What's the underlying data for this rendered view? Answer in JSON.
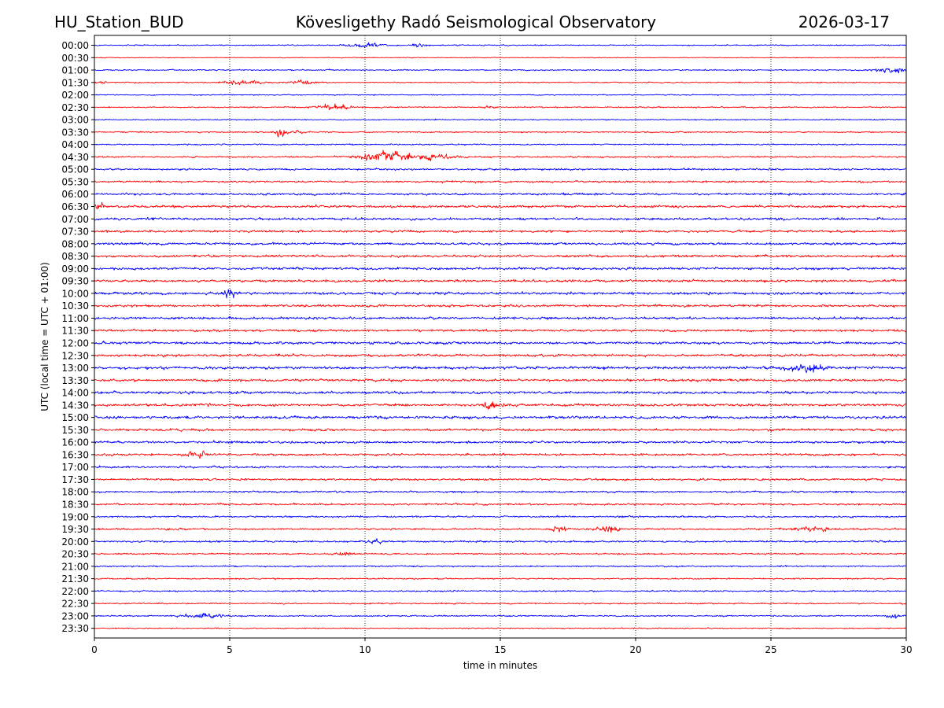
{
  "header": {
    "station": "HU_Station_BUD",
    "observatory": "Kövesligethy Radó Seismological Observatory",
    "date": "2026-03-17"
  },
  "chart_data": {
    "type": "line",
    "title": "Kövesligethy Radó Seismological Observatory",
    "xlabel": "time in minutes",
    "ylabel": "UTC (local time = UTC + 01:00)",
    "xlim": [
      0,
      30
    ],
    "x_ticks": [
      0,
      5,
      10,
      15,
      20,
      25,
      30
    ],
    "x_grid": true,
    "trace_colors": [
      "#0000ff",
      "#ff0000"
    ],
    "row_labels": [
      "00:00",
      "00:30",
      "01:00",
      "01:30",
      "02:00",
      "02:30",
      "03:00",
      "03:30",
      "04:00",
      "04:30",
      "05:00",
      "05:30",
      "06:00",
      "06:30",
      "07:00",
      "07:30",
      "08:00",
      "08:30",
      "09:00",
      "09:30",
      "10:00",
      "10:30",
      "11:00",
      "11:30",
      "12:00",
      "12:30",
      "13:00",
      "13:30",
      "14:00",
      "14:30",
      "15:00",
      "15:30",
      "16:00",
      "16:30",
      "17:00",
      "17:30",
      "18:00",
      "18:30",
      "19:00",
      "19:30",
      "20:00",
      "20:30",
      "21:00",
      "21:30",
      "22:00",
      "22:30",
      "23:00",
      "23:30"
    ],
    "noise_level": [
      0.22,
      0.16,
      0.24,
      0.22,
      0.2,
      0.24,
      0.22,
      0.24,
      0.26,
      0.3,
      0.34,
      0.36,
      0.42,
      0.45,
      0.47,
      0.44,
      0.47,
      0.45,
      0.48,
      0.47,
      0.5,
      0.47,
      0.45,
      0.44,
      0.48,
      0.47,
      0.52,
      0.5,
      0.52,
      0.5,
      0.52,
      0.44,
      0.44,
      0.42,
      0.4,
      0.38,
      0.36,
      0.35,
      0.34,
      0.33,
      0.34,
      0.3,
      0.28,
      0.27,
      0.27,
      0.26,
      0.26,
      0.22
    ],
    "events": [
      {
        "row": 0,
        "minute": 10.0,
        "amplitude": 0.9,
        "duration_min": 1.2
      },
      {
        "row": 0,
        "minute": 12.0,
        "amplitude": 0.6,
        "duration_min": 0.6
      },
      {
        "row": 2,
        "minute": 29.5,
        "amplitude": 1.1,
        "duration_min": 1.2
      },
      {
        "row": 3,
        "minute": 5.5,
        "amplitude": 0.9,
        "duration_min": 1.3
      },
      {
        "row": 3,
        "minute": 7.7,
        "amplitude": 0.8,
        "duration_min": 0.8
      },
      {
        "row": 3,
        "minute": 0.2,
        "amplitude": 0.6,
        "duration_min": 0.5
      },
      {
        "row": 5,
        "minute": 8.8,
        "amplitude": 0.9,
        "duration_min": 1.5
      },
      {
        "row": 5,
        "minute": 14.6,
        "amplitude": 1.0,
        "duration_min": 0.4
      },
      {
        "row": 7,
        "minute": 6.9,
        "amplitude": 1.6,
        "duration_min": 0.5
      },
      {
        "row": 7,
        "minute": 7.5,
        "amplitude": 0.6,
        "duration_min": 1.0
      },
      {
        "row": 9,
        "minute": 10.7,
        "amplitude": 2.2,
        "duration_min": 1.8
      },
      {
        "row": 9,
        "minute": 12.5,
        "amplitude": 0.8,
        "duration_min": 2.0
      },
      {
        "row": 13,
        "minute": 0.2,
        "amplitude": 1.0,
        "duration_min": 0.5
      },
      {
        "row": 20,
        "minute": 5.0,
        "amplitude": 1.4,
        "duration_min": 0.5
      },
      {
        "row": 26,
        "minute": 26.3,
        "amplitude": 1.2,
        "duration_min": 1.6
      },
      {
        "row": 29,
        "minute": 14.7,
        "amplitude": 1.5,
        "duration_min": 0.6
      },
      {
        "row": 33,
        "minute": 3.8,
        "amplitude": 2.2,
        "duration_min": 0.6
      },
      {
        "row": 39,
        "minute": 17.2,
        "amplitude": 1.1,
        "duration_min": 0.5
      },
      {
        "row": 39,
        "minute": 19.0,
        "amplitude": 1.3,
        "duration_min": 0.8
      },
      {
        "row": 39,
        "minute": 26.5,
        "amplitude": 0.8,
        "duration_min": 1.5
      },
      {
        "row": 40,
        "minute": 10.4,
        "amplitude": 0.9,
        "duration_min": 0.6
      },
      {
        "row": 41,
        "minute": 9.2,
        "amplitude": 0.7,
        "duration_min": 0.6
      },
      {
        "row": 46,
        "minute": 4.0,
        "amplitude": 0.8,
        "duration_min": 1.6
      },
      {
        "row": 46,
        "minute": 29.5,
        "amplitude": 1.6,
        "duration_min": 0.4
      }
    ]
  }
}
